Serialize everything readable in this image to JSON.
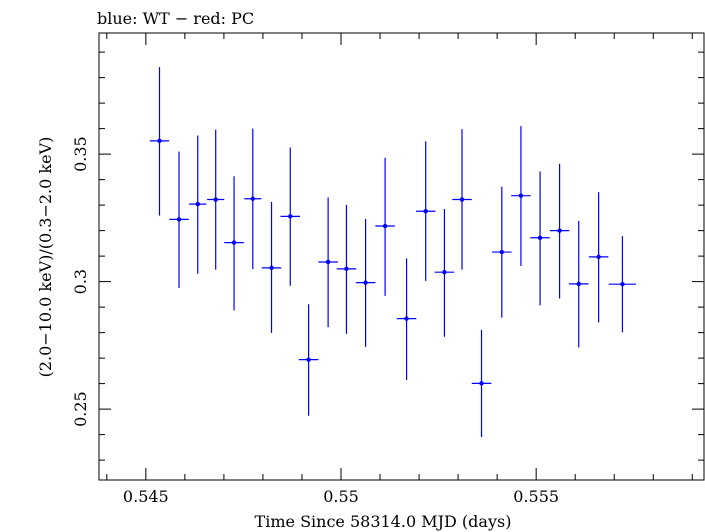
{
  "chart_data": {
    "type": "scatter",
    "title": "blue: WT − red: PC",
    "xlabel": "Time Since 58314.0 MJD (days)",
    "ylabel": "(2.0−10.0 keV)/(0.3−2.0 keV)",
    "xlim": [
      0.5438,
      0.5593
    ],
    "ylim": [
      0.2222,
      0.3975
    ],
    "xticks": [
      0.545,
      0.55,
      0.555
    ],
    "xtick_labels": [
      "0.545",
      "0.55",
      "0.555"
    ],
    "yticks": [
      0.25,
      0.3,
      0.35
    ],
    "ytick_labels": [
      "0.25",
      "0.3",
      "0.35"
    ],
    "grid": false,
    "series": [
      {
        "color": "#0000ff",
        "points": [
          {
            "x": 0.54535,
            "y": 0.3552,
            "xerr": 0.00025,
            "ylo": 0.3259,
            "yhi": 0.3841
          },
          {
            "x": 0.54585,
            "y": 0.3244,
            "xerr": 0.00025,
            "ylo": 0.2975,
            "yhi": 0.351
          },
          {
            "x": 0.54633,
            "y": 0.3304,
            "xerr": 0.00022,
            "ylo": 0.3031,
            "yhi": 0.3573
          },
          {
            "x": 0.54679,
            "y": 0.3322,
            "xerr": 0.00022,
            "ylo": 0.3047,
            "yhi": 0.3596
          },
          {
            "x": 0.54726,
            "y": 0.3153,
            "xerr": 0.00025,
            "ylo": 0.2887,
            "yhi": 0.3413
          },
          {
            "x": 0.54774,
            "y": 0.3325,
            "xerr": 0.00022,
            "ylo": 0.3049,
            "yhi": 0.36
          },
          {
            "x": 0.54822,
            "y": 0.3054,
            "xerr": 0.00025,
            "ylo": 0.2799,
            "yhi": 0.3312
          },
          {
            "x": 0.5487,
            "y": 0.3256,
            "xerr": 0.00025,
            "ylo": 0.2984,
            "yhi": 0.3526
          },
          {
            "x": 0.54917,
            "y": 0.2694,
            "xerr": 0.00025,
            "ylo": 0.2474,
            "yhi": 0.2911
          },
          {
            "x": 0.54967,
            "y": 0.3077,
            "xerr": 0.00025,
            "ylo": 0.2821,
            "yhi": 0.333
          },
          {
            "x": 0.55014,
            "y": 0.305,
            "xerr": 0.00025,
            "ylo": 0.2795,
            "yhi": 0.3301
          },
          {
            "x": 0.55063,
            "y": 0.2996,
            "xerr": 0.00025,
            "ylo": 0.2744,
            "yhi": 0.3246
          },
          {
            "x": 0.55113,
            "y": 0.3218,
            "xerr": 0.00025,
            "ylo": 0.2944,
            "yhi": 0.3486
          },
          {
            "x": 0.55168,
            "y": 0.2855,
            "xerr": 0.00025,
            "ylo": 0.2614,
            "yhi": 0.3091
          },
          {
            "x": 0.55217,
            "y": 0.3276,
            "xerr": 0.00025,
            "ylo": 0.3003,
            "yhi": 0.355
          },
          {
            "x": 0.55265,
            "y": 0.3037,
            "xerr": 0.00025,
            "ylo": 0.2784,
            "yhi": 0.3285
          },
          {
            "x": 0.5531,
            "y": 0.3322,
            "xerr": 0.00025,
            "ylo": 0.3047,
            "yhi": 0.3598
          },
          {
            "x": 0.5536,
            "y": 0.2601,
            "xerr": 0.00025,
            "ylo": 0.239,
            "yhi": 0.2811
          },
          {
            "x": 0.55412,
            "y": 0.3116,
            "xerr": 0.00025,
            "ylo": 0.2859,
            "yhi": 0.3372
          },
          {
            "x": 0.55461,
            "y": 0.3337,
            "xerr": 0.00025,
            "ylo": 0.3061,
            "yhi": 0.361
          },
          {
            "x": 0.5551,
            "y": 0.3172,
            "xerr": 0.00025,
            "ylo": 0.2907,
            "yhi": 0.3432
          },
          {
            "x": 0.5556,
            "y": 0.32,
            "xerr": 0.00025,
            "ylo": 0.2934,
            "yhi": 0.3462
          },
          {
            "x": 0.55609,
            "y": 0.2991,
            "xerr": 0.00025,
            "ylo": 0.2742,
            "yhi": 0.3238
          },
          {
            "x": 0.5566,
            "y": 0.3097,
            "xerr": 0.00025,
            "ylo": 0.284,
            "yhi": 0.3351
          },
          {
            "x": 0.55721,
            "y": 0.299,
            "xerr": 0.00035,
            "ylo": 0.2801,
            "yhi": 0.3178
          }
        ]
      }
    ]
  }
}
